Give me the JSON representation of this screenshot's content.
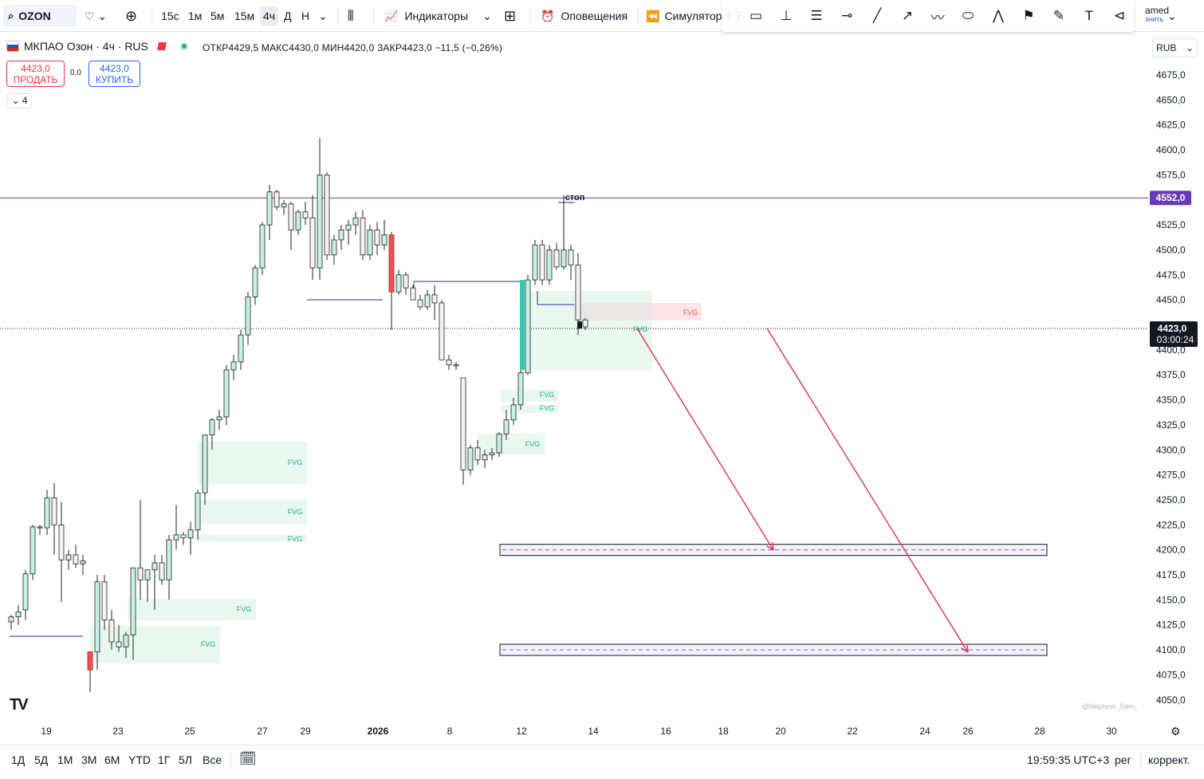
{
  "header": {
    "symbol": "OZON",
    "intervals": [
      "15с",
      "1м",
      "5м",
      "15м",
      "4ч",
      "Д",
      "Н"
    ],
    "indicators": "Индикаторы",
    "alerts": "Оповещения",
    "simulator": "Симулятор",
    "user_top": "amed",
    "user_bottom": "знить"
  },
  "legend": {
    "title": "МКПАО Озон · 4ч · RUS",
    "ohlc": "ОТКР4429,5  МАКС4430,0  МИН4420,0  ЗАКР4423,0  −11,5 (−0,26%)",
    "sell_price": "4423,0",
    "sell_label": "ПРОДАТЬ",
    "spread": "0,0",
    "buy_price": "4423,0",
    "buy_label": "КУПИТЬ",
    "collapse_count": "4"
  },
  "currency": "RUB",
  "chart_data": {
    "type": "candlestick",
    "price_axis": [
      "4675,0",
      "4650,0",
      "4625,0",
      "4600,0",
      "4575,0",
      "4550,0",
      "4525,0",
      "4500,0",
      "4475,0",
      "4450,0",
      "4425,0",
      "4400,0",
      "4375,0",
      "4350,0",
      "4325,0",
      "4300,0",
      "4275,0",
      "4250,0",
      "4225,0",
      "4200,0",
      "4175,0",
      "4150,0",
      "4125,0",
      "4100,0",
      "4075,0",
      "4050,0"
    ],
    "time_axis": [
      "19",
      "23",
      "25",
      "27",
      "29",
      "2026",
      "8",
      "12",
      "14",
      "16",
      "18",
      "20",
      "22",
      "24",
      "26",
      "28",
      "30"
    ],
    "stop_level": "4552,0",
    "stop_label": "стоп",
    "last_price": "4423,0",
    "countdown": "03:00:24",
    "fvg_label": "FVG",
    "target_levels": [
      4200,
      4100
    ],
    "watermark": "@Nephew_Sam_",
    "colors": {
      "up": "#26a69a",
      "down": "#ef5350",
      "fvg_green": "#e8f8ee",
      "fvg_red": "#fde4e6",
      "stop_line": "#673ab7",
      "arrow": "#e0334d"
    }
  },
  "bottom": {
    "ranges": [
      "1Д",
      "5Д",
      "1М",
      "3М",
      "6М",
      "YTD",
      "1Г",
      "5Л",
      "Все"
    ],
    "time": "19:59:35 UTC+3",
    "session": "рег",
    "adjust": "коррект."
  }
}
